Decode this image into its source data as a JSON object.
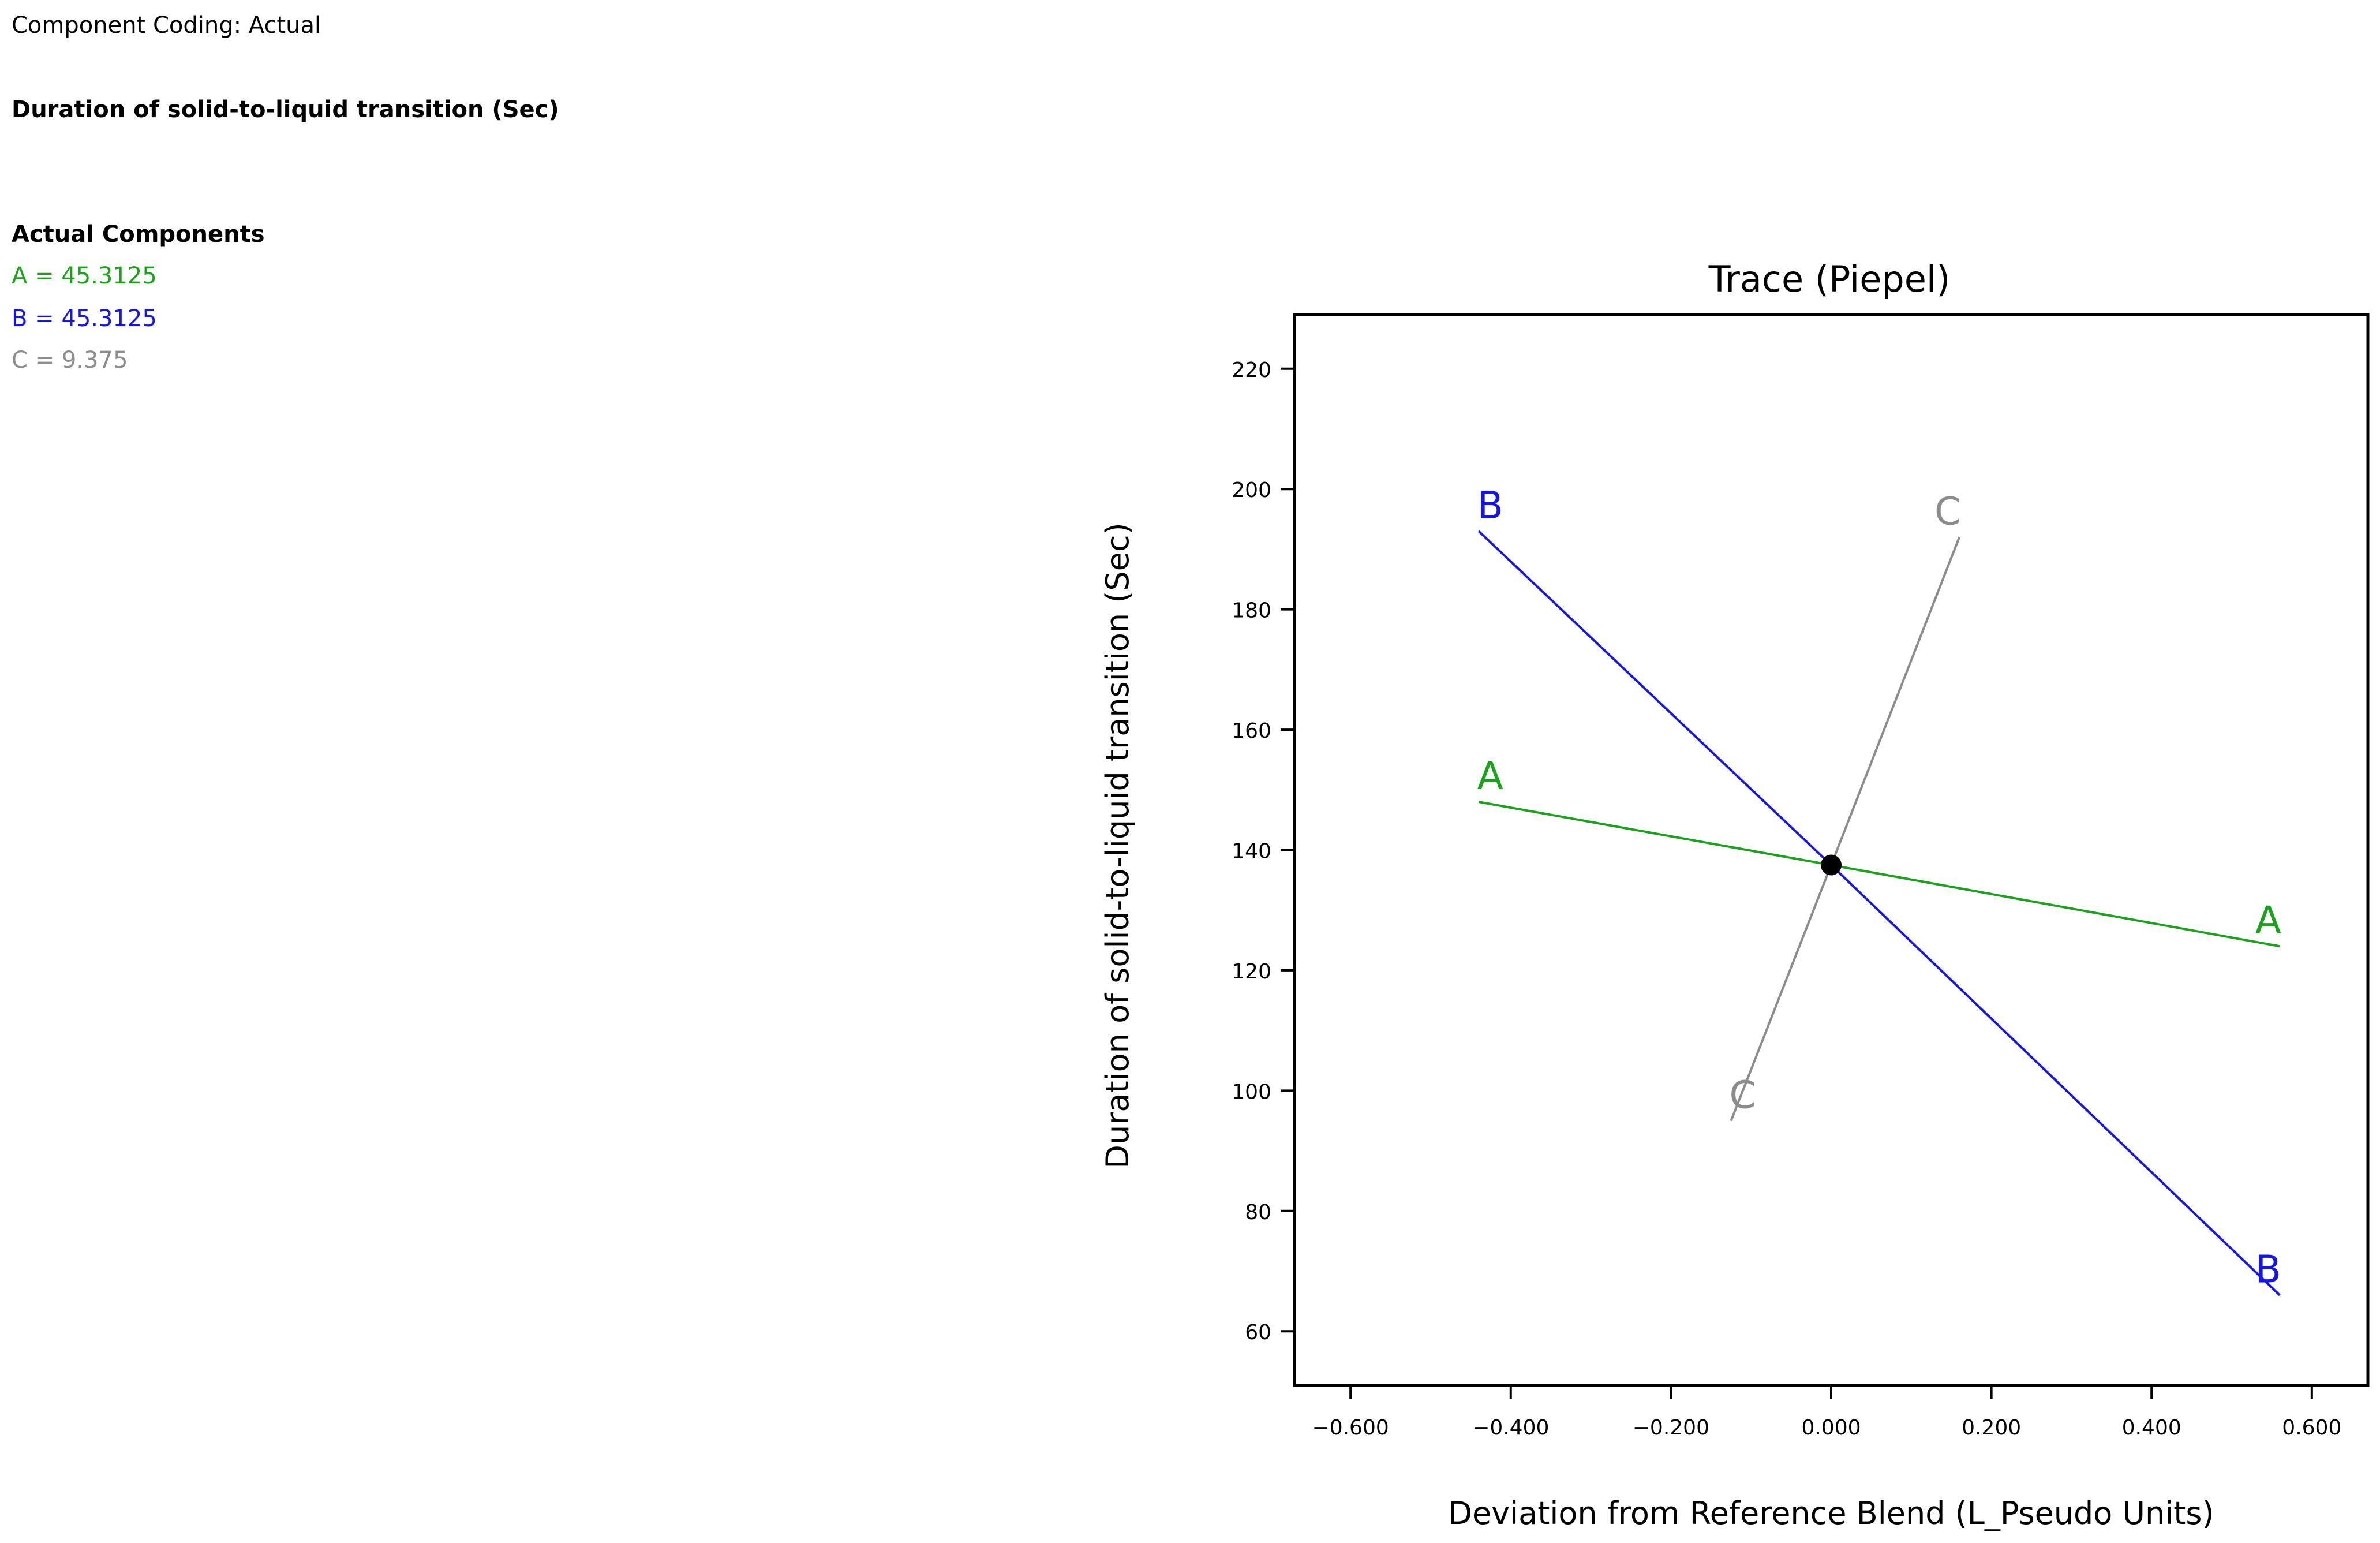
{
  "header": {
    "coding": "Component Coding: Actual",
    "response_title": "Duration of solid-to-liquid transition (Sec)"
  },
  "components": {
    "heading": "Actual Components",
    "items": [
      {
        "label": "A = 45.3125",
        "color": "#1aa31a"
      },
      {
        "label": "B = 45.3125",
        "color": "#1414f0"
      },
      {
        "label": "C = 9.375",
        "color": "#8c8c8c"
      }
    ]
  },
  "chart_data": {
    "type": "line",
    "title": "Trace (Piepel)",
    "xlabel": "Deviation from Reference Blend (L_Pseudo Units)",
    "ylabel": "Duration of solid-to-liquid transition (Sec)",
    "xlim": [
      -0.67,
      0.67
    ],
    "ylim": [
      51,
      229
    ],
    "x_ticks": [
      -0.6,
      -0.4,
      -0.2,
      0.0,
      0.2,
      0.4,
      0.6
    ],
    "x_tick_labels": [
      "−0.600",
      "−0.400",
      "−0.200",
      "0.000",
      "0.200",
      "0.400",
      "0.600"
    ],
    "y_ticks": [
      60,
      80,
      100,
      120,
      140,
      160,
      180,
      200,
      220
    ],
    "y_tick_labels": [
      "60",
      "80",
      "100",
      "120",
      "140",
      "160",
      "180",
      "200",
      "220"
    ],
    "grid": false,
    "series": [
      {
        "name": "A",
        "color": "#1aa31a",
        "x": [
          -0.44,
          0.0,
          0.56
        ],
        "y": [
          148,
          137.5,
          124
        ],
        "start_label": "A",
        "end_label": "A"
      },
      {
        "name": "B",
        "color": "#1414f0",
        "x": [
          -0.44,
          0.0,
          0.56
        ],
        "y": [
          193,
          137.5,
          66
        ],
        "start_label": "B",
        "end_label": "B"
      },
      {
        "name": "C",
        "color": "#8c8c8c",
        "x": [
          -0.125,
          0.0,
          0.16
        ],
        "y": [
          95,
          137.5,
          192
        ],
        "start_label": "C",
        "end_label": "C"
      }
    ],
    "reference_point": {
      "x": 0.0,
      "y": 137.5
    }
  }
}
